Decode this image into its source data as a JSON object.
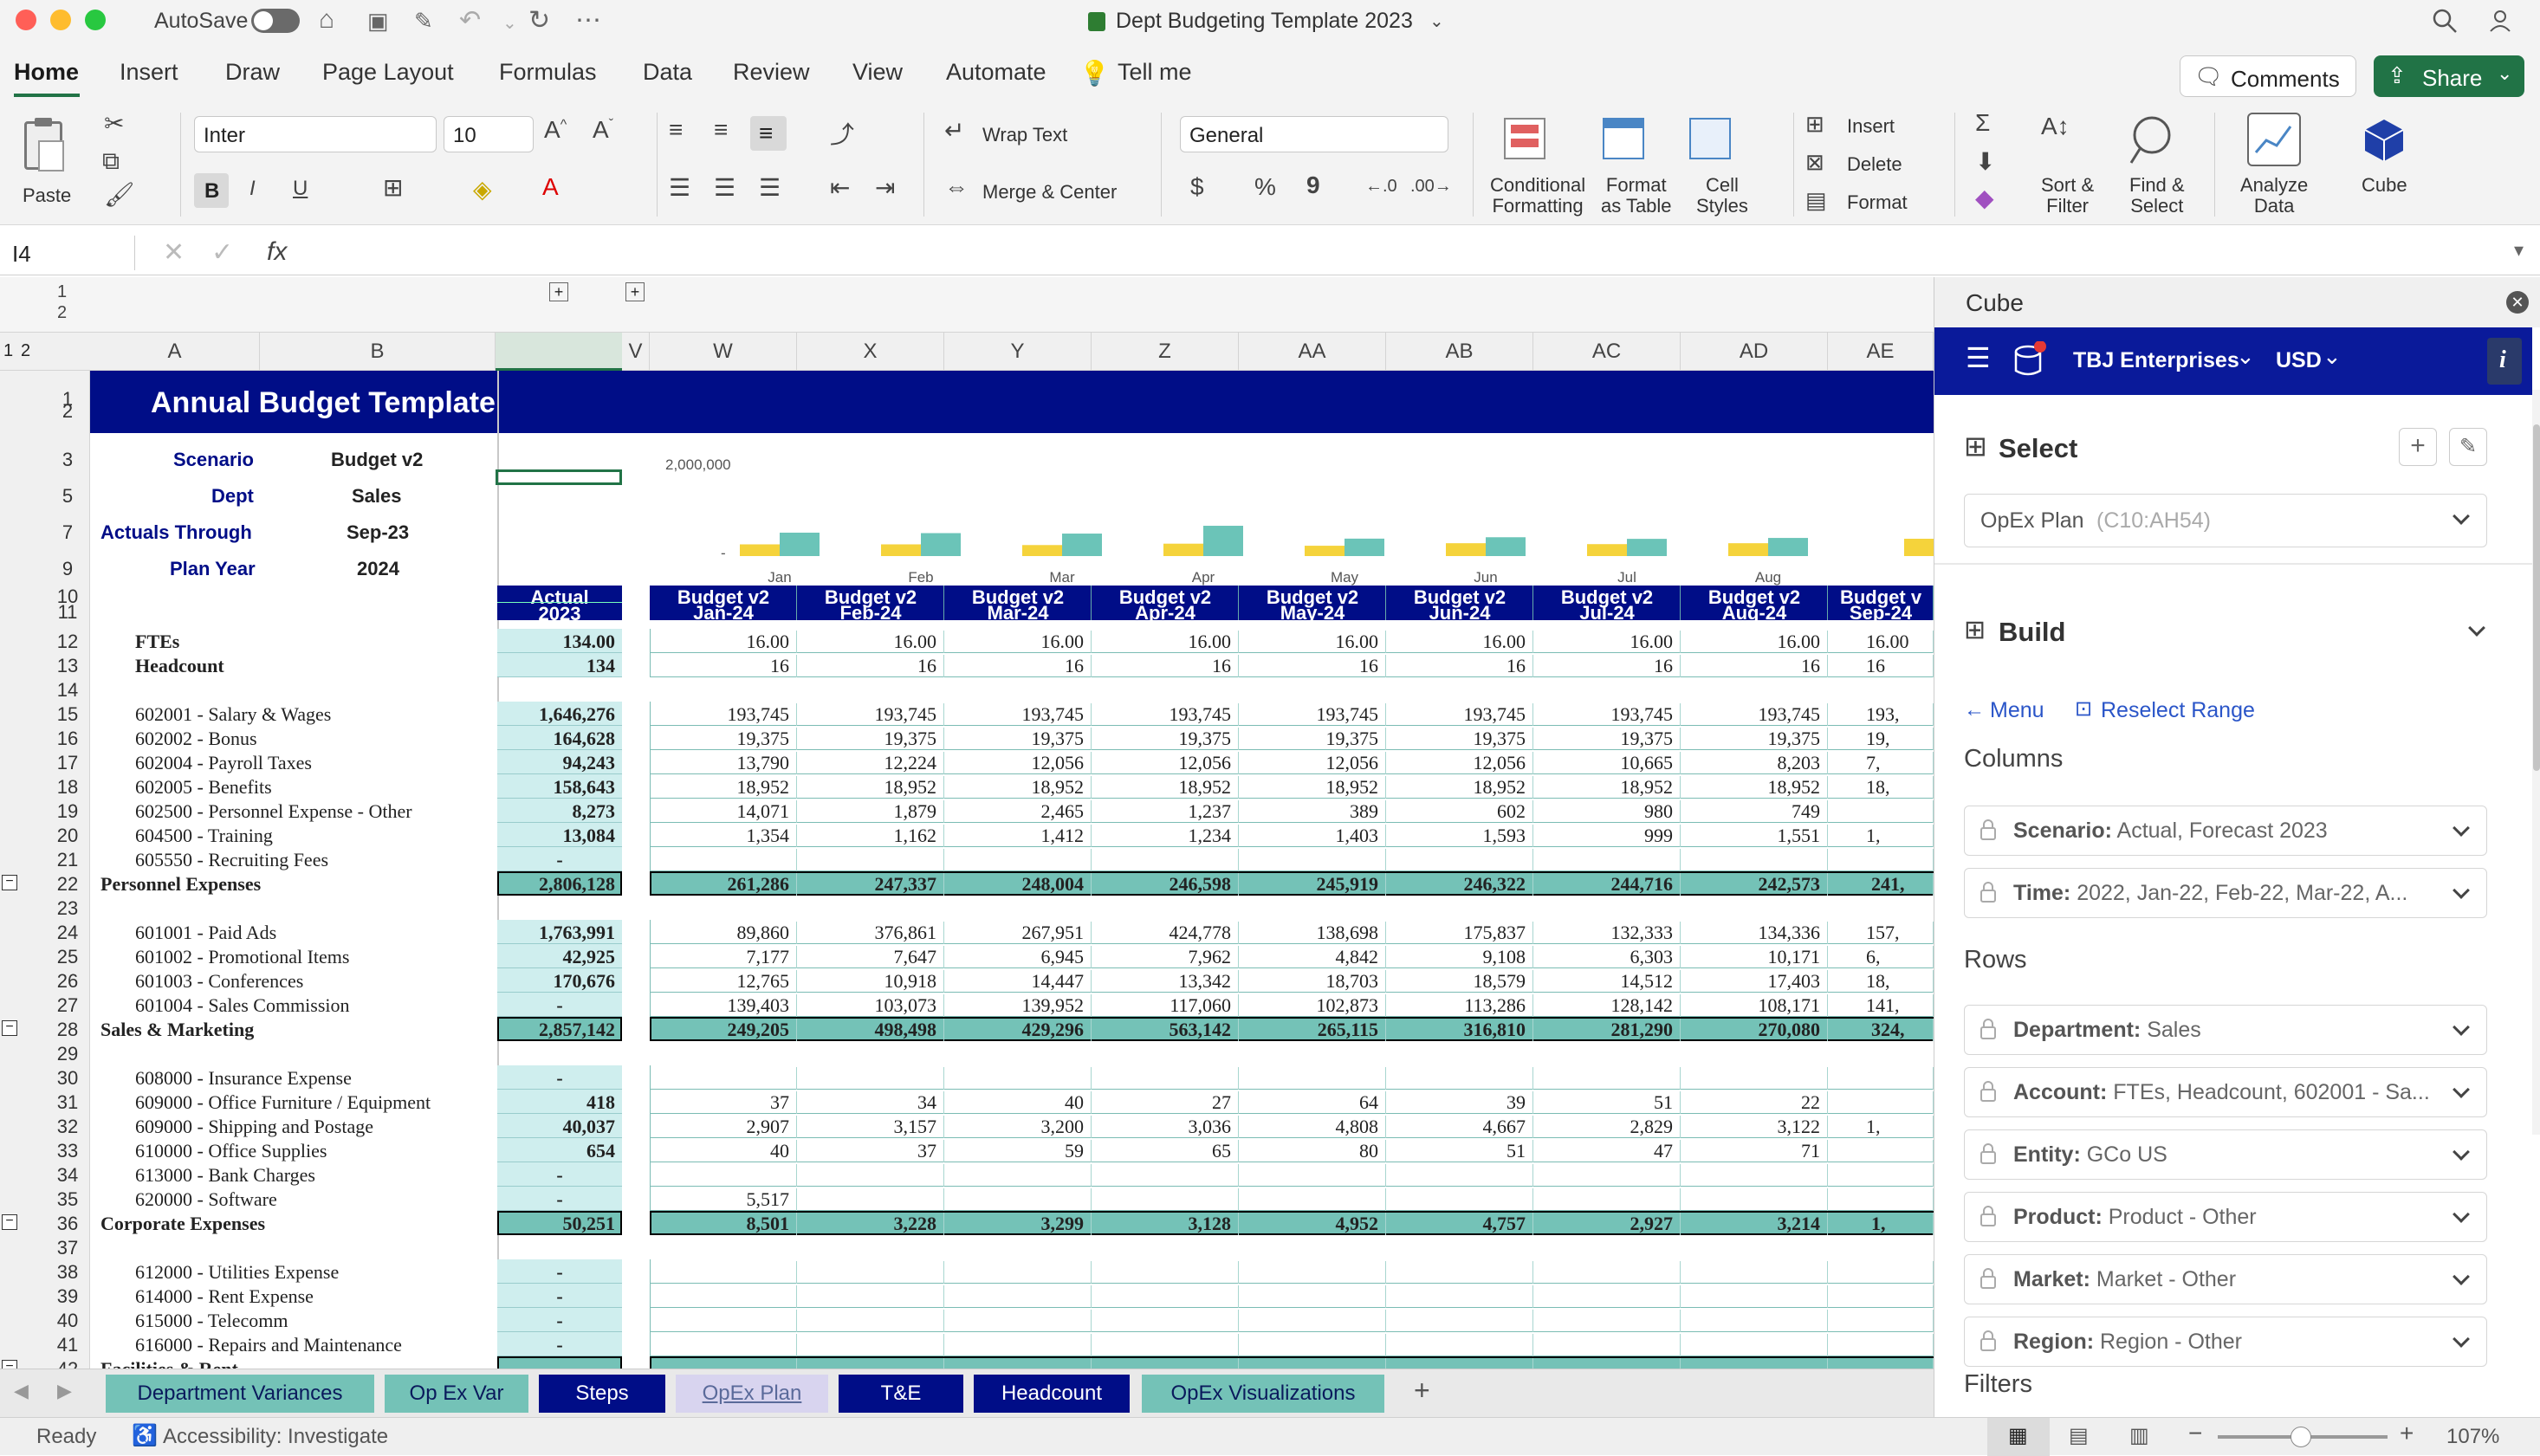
{
  "titlebar": {
    "autosave": "AutoSave",
    "doc_title": "Dept Budgeting Template 2023"
  },
  "ribbon_tabs": [
    "Home",
    "Insert",
    "Draw",
    "Page Layout",
    "Formulas",
    "Data",
    "Review",
    "View",
    "Automate",
    "Tell me"
  ],
  "comments_btn": "Comments",
  "share_btn": "Share",
  "ribbon": {
    "paste": "Paste",
    "font": "Inter",
    "size": "10",
    "wrap": "Wrap Text",
    "merge": "Merge & Center",
    "numfmt": "General",
    "cond1": "Conditional",
    "cond2": "Formatting",
    "fmt1": "Format",
    "fmt2": "as Table",
    "cell1": "Cell",
    "cell2": "Styles",
    "insert": "Insert",
    "delete": "Delete",
    "format": "Format",
    "sort1": "Sort &",
    "sort2": "Filter",
    "find1": "Find &",
    "find2": "Select",
    "analyze1": "Analyze",
    "analyze2": "Data",
    "cube": "Cube",
    "bold": "B",
    "italic": "I",
    "underline": "U",
    "dollar": "$",
    "percent": "%",
    "comma": "9"
  },
  "formula": {
    "namebox": "I4",
    "fx": "fx"
  },
  "columns": [
    "A",
    "B",
    "I",
    "V",
    "W",
    "X",
    "Y",
    "Z",
    "AA",
    "AB",
    "AC",
    "AD",
    "AE"
  ],
  "outline_levels": [
    "1",
    "2"
  ],
  "header": {
    "title": "Annual Budget Template",
    "scenario_label": "Scenario",
    "scenario": "Budget v2",
    "dept_label": "Dept",
    "dept": "Sales",
    "actuals_label": "Actuals Through",
    "actuals": "Sep-23",
    "plan_label": "Plan Year",
    "plan": "2024"
  },
  "chart_data": {
    "type": "bar",
    "ymax_label": "2,000,000",
    "ymin_label": "-",
    "categories": [
      "Jan",
      "Feb",
      "Mar",
      "Apr",
      "May",
      "Jun",
      "Jul",
      "Aug"
    ],
    "series": [
      {
        "color": "#f5d33b",
        "values": [
          510000,
          510000,
          480000,
          540000,
          450000,
          560000,
          520000,
          560000
        ]
      },
      {
        "color": "#6bc4b8",
        "values": [
          1020000,
          1000000,
          980000,
          1320000,
          760000,
          820000,
          750000,
          790000
        ]
      }
    ],
    "ylim": [
      0,
      2000000
    ]
  },
  "col_hdr": {
    "actual": "Actual",
    "actual_year": "2023",
    "scen": [
      "Budget v2",
      "Budget v2",
      "Budget v2",
      "Budget v2",
      "Budget v2",
      "Budget v2",
      "Budget v2",
      "Budget v2",
      "Budget v"
    ],
    "months": [
      "Jan-24",
      "Feb-24",
      "Mar-24",
      "Apr-24",
      "May-24",
      "Jun-24",
      "Jul-24",
      "Aug-24",
      "Sep-24"
    ]
  },
  "rows": [
    {
      "r": "12",
      "label": "FTEs",
      "bold": true,
      "actual": "134.00",
      "vals": [
        "16.00",
        "16.00",
        "16.00",
        "16.00",
        "16.00",
        "16.00",
        "16.00",
        "16.00",
        "16.00"
      ]
    },
    {
      "r": "13",
      "label": "Headcount",
      "bold": true,
      "actual": "134",
      "vals": [
        "16",
        "16",
        "16",
        "16",
        "16",
        "16",
        "16",
        "16",
        "16"
      ]
    },
    {
      "r": "14",
      "label": "",
      "actual": "",
      "vals": []
    },
    {
      "r": "15",
      "label": "602001 - Salary & Wages",
      "actual": "1,646,276",
      "vals": [
        "193,745",
        "193,745",
        "193,745",
        "193,745",
        "193,745",
        "193,745",
        "193,745",
        "193,745",
        "193,"
      ]
    },
    {
      "r": "16",
      "label": "602002 - Bonus",
      "actual": "164,628",
      "vals": [
        "19,375",
        "19,375",
        "19,375",
        "19,375",
        "19,375",
        "19,375",
        "19,375",
        "19,375",
        "19,"
      ]
    },
    {
      "r": "17",
      "label": "602004 - Payroll Taxes",
      "actual": "94,243",
      "vals": [
        "13,790",
        "12,224",
        "12,056",
        "12,056",
        "12,056",
        "12,056",
        "10,665",
        "8,203",
        "7,"
      ]
    },
    {
      "r": "18",
      "label": "602005 - Benefits",
      "actual": "158,643",
      "vals": [
        "18,952",
        "18,952",
        "18,952",
        "18,952",
        "18,952",
        "18,952",
        "18,952",
        "18,952",
        "18,"
      ]
    },
    {
      "r": "19",
      "label": "602500 - Personnel Expense - Other",
      "actual": "8,273",
      "vals": [
        "14,071",
        "1,879",
        "2,465",
        "1,237",
        "389",
        "602",
        "980",
        "749",
        ""
      ]
    },
    {
      "r": "20",
      "label": "604500 - Training",
      "actual": "13,084",
      "vals": [
        "1,354",
        "1,162",
        "1,412",
        "1,234",
        "1,403",
        "1,593",
        "999",
        "1,551",
        "1,"
      ]
    },
    {
      "r": "21",
      "label": "605550 - Recruiting Fees",
      "actual": "-",
      "vals": [
        "",
        "",
        "",
        "",
        "",
        "",
        "",
        "",
        ""
      ]
    },
    {
      "r": "22",
      "label": "Personnel Expenses",
      "total": true,
      "actual": "2,806,128",
      "vals": [
        "261,286",
        "247,337",
        "248,004",
        "246,598",
        "245,919",
        "246,322",
        "244,716",
        "242,573",
        "241,"
      ]
    },
    {
      "r": "23",
      "label": "",
      "actual": "",
      "vals": []
    },
    {
      "r": "24",
      "label": "601001 - Paid Ads",
      "actual": "1,763,991",
      "vals": [
        "89,860",
        "376,861",
        "267,951",
        "424,778",
        "138,698",
        "175,837",
        "132,333",
        "134,336",
        "157,"
      ]
    },
    {
      "r": "25",
      "label": "601002 - Promotional Items",
      "actual": "42,925",
      "vals": [
        "7,177",
        "7,647",
        "6,945",
        "7,962",
        "4,842",
        "9,108",
        "6,303",
        "10,171",
        "6,"
      ]
    },
    {
      "r": "26",
      "label": "601003 - Conferences",
      "actual": "170,676",
      "vals": [
        "12,765",
        "10,918",
        "14,447",
        "13,342",
        "18,703",
        "18,579",
        "14,512",
        "17,403",
        "18,"
      ]
    },
    {
      "r": "27",
      "label": "601004 - Sales Commission",
      "actual": "-",
      "vals": [
        "139,403",
        "103,073",
        "139,952",
        "117,060",
        "102,873",
        "113,286",
        "128,142",
        "108,171",
        "141,"
      ]
    },
    {
      "r": "28",
      "label": "Sales & Marketing",
      "total": true,
      "actual": "2,857,142",
      "vals": [
        "249,205",
        "498,498",
        "429,296",
        "563,142",
        "265,115",
        "316,810",
        "281,290",
        "270,080",
        "324,"
      ]
    },
    {
      "r": "29",
      "label": "",
      "actual": "",
      "vals": []
    },
    {
      "r": "30",
      "label": "608000 - Insurance Expense",
      "actual": "-",
      "vals": [
        "",
        "",
        "",
        "",
        "",
        "",
        "",
        "",
        ""
      ]
    },
    {
      "r": "31",
      "label": "609000 - Office Furniture / Equipment",
      "actual": "418",
      "vals": [
        "37",
        "34",
        "40",
        "27",
        "64",
        "39",
        "51",
        "22",
        ""
      ]
    },
    {
      "r": "32",
      "label": "609000 - Shipping and Postage",
      "actual": "40,037",
      "vals": [
        "2,907",
        "3,157",
        "3,200",
        "3,036",
        "4,808",
        "4,667",
        "2,829",
        "3,122",
        "1,"
      ]
    },
    {
      "r": "33",
      "label": "610000 - Office Supplies",
      "actual": "654",
      "vals": [
        "40",
        "37",
        "59",
        "65",
        "80",
        "51",
        "47",
        "71",
        ""
      ]
    },
    {
      "r": "34",
      "label": "613000 - Bank Charges",
      "actual": "-",
      "vals": [
        "",
        "",
        "",
        "",
        "",
        "",
        "",
        "",
        ""
      ]
    },
    {
      "r": "35",
      "label": "620000 - Software",
      "actual": "-",
      "vals": [
        "5,517",
        "",
        "",
        "",
        "",
        "",
        "",
        "",
        ""
      ]
    },
    {
      "r": "36",
      "label": "Corporate Expenses",
      "total": true,
      "actual": "50,251",
      "vals": [
        "8,501",
        "3,228",
        "3,299",
        "3,128",
        "4,952",
        "4,757",
        "2,927",
        "3,214",
        "1,"
      ]
    },
    {
      "r": "37",
      "label": "",
      "actual": "",
      "vals": []
    },
    {
      "r": "38",
      "label": "612000 - Utilities Expense",
      "actual": "-",
      "vals": [
        "",
        "",
        "",
        "",
        "",
        "",
        "",
        "",
        ""
      ]
    },
    {
      "r": "39",
      "label": "614000 - Rent Expense",
      "actual": "-",
      "vals": [
        "",
        "",
        "",
        "",
        "",
        "",
        "",
        "",
        ""
      ]
    },
    {
      "r": "40",
      "label": "615000 - Telecomm",
      "actual": "-",
      "vals": [
        "",
        "",
        "",
        "",
        "",
        "",
        "",
        "",
        ""
      ]
    },
    {
      "r": "41",
      "label": "616000 - Repairs and Maintenance",
      "actual": "-",
      "vals": [
        "",
        "",
        "",
        "",
        "",
        "",
        "",
        "",
        ""
      ]
    },
    {
      "r": "42",
      "label": "Facilities & Rent",
      "total": true,
      "actual": "-",
      "vals": [
        "-",
        "-",
        "-",
        "-",
        "-",
        "-",
        "-",
        "-",
        ""
      ]
    },
    {
      "r": "43",
      "label": "",
      "actual": "",
      "vals": []
    },
    {
      "r": "44",
      "label": "604001 - Legal",
      "actual": "",
      "vals": []
    }
  ],
  "sheet_tabs": [
    "Department Variances",
    "Op Ex Var",
    "Steps",
    "OpEx Plan",
    "T&E",
    "Headcount",
    "OpEx Visualizations"
  ],
  "status": {
    "ready": "Ready",
    "access": "Accessibility: Investigate",
    "zoom": "107%"
  },
  "panel": {
    "title": "Cube",
    "company": "TBJ Enterprises",
    "currency": "USD",
    "select": "Select",
    "select_value": "OpEx Plan",
    "select_range": "(C10:AH54)",
    "build": "Build",
    "menu": "Menu",
    "reselect": "Reselect Range",
    "columns": "Columns",
    "rows_label": "Rows",
    "filters": "Filters",
    "col_items": [
      {
        "k": "Scenario:",
        "v": "Actual, Forecast 2023"
      },
      {
        "k": "Time:",
        "v": "2022, Jan-22, Feb-22, Mar-22, A..."
      }
    ],
    "row_items": [
      {
        "k": "Department:",
        "v": "Sales"
      },
      {
        "k": "Account:",
        "v": "FTEs, Headcount, 602001 - Sa..."
      },
      {
        "k": "Entity:",
        "v": "GCo US"
      },
      {
        "k": "Product:",
        "v": "Product - Other"
      },
      {
        "k": "Market:",
        "v": "Market - Other"
      },
      {
        "k": "Region:",
        "v": "Region - Other"
      }
    ]
  }
}
